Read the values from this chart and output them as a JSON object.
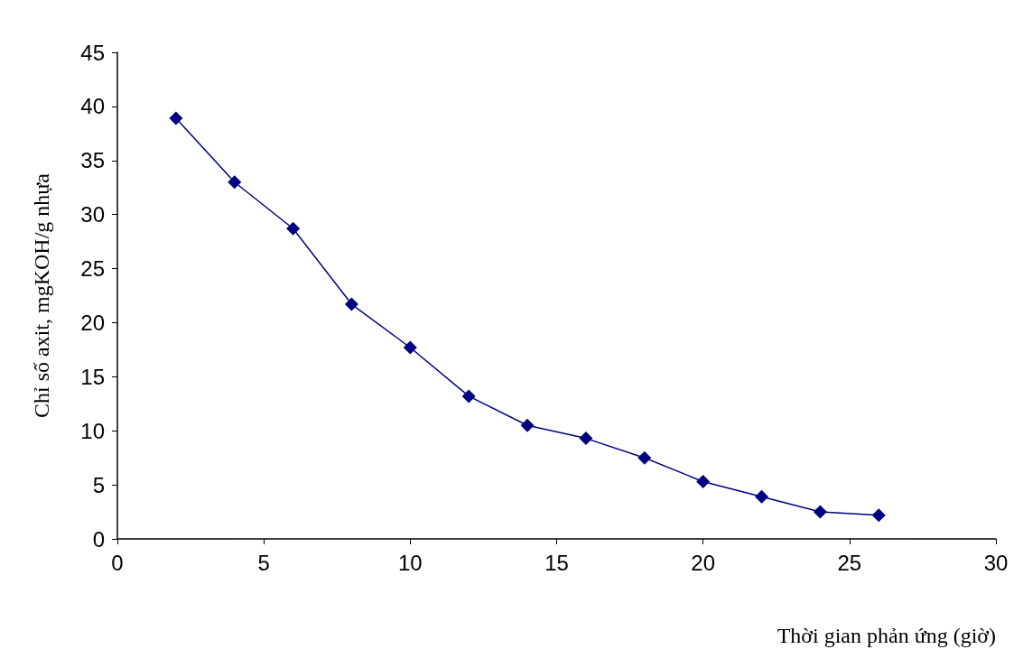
{
  "chart_data": {
    "type": "line",
    "xlabel": "Thời gian phản ứng (giờ)",
    "ylabel": "Chỉ số axit, mgKOH/g nhựa",
    "x": [
      2,
      4,
      6,
      8,
      10,
      12,
      14,
      16,
      18,
      20,
      22,
      24,
      26
    ],
    "series": [
      {
        "color": "#000080",
        "values": [
          38.9,
          33.0,
          28.7,
          21.7,
          17.7,
          13.2,
          10.5,
          9.3,
          7.5,
          5.3,
          3.9,
          2.5,
          2.2
        ]
      }
    ],
    "xlim": [
      0,
      30
    ],
    "xticks": [
      0,
      5,
      10,
      15,
      20,
      25,
      30
    ],
    "ylim": [
      0,
      45
    ],
    "yticks": [
      0,
      5,
      10,
      15,
      20,
      25,
      30,
      35,
      40,
      45
    ],
    "grid": false,
    "marker": "diamond",
    "line_style": "solid"
  }
}
